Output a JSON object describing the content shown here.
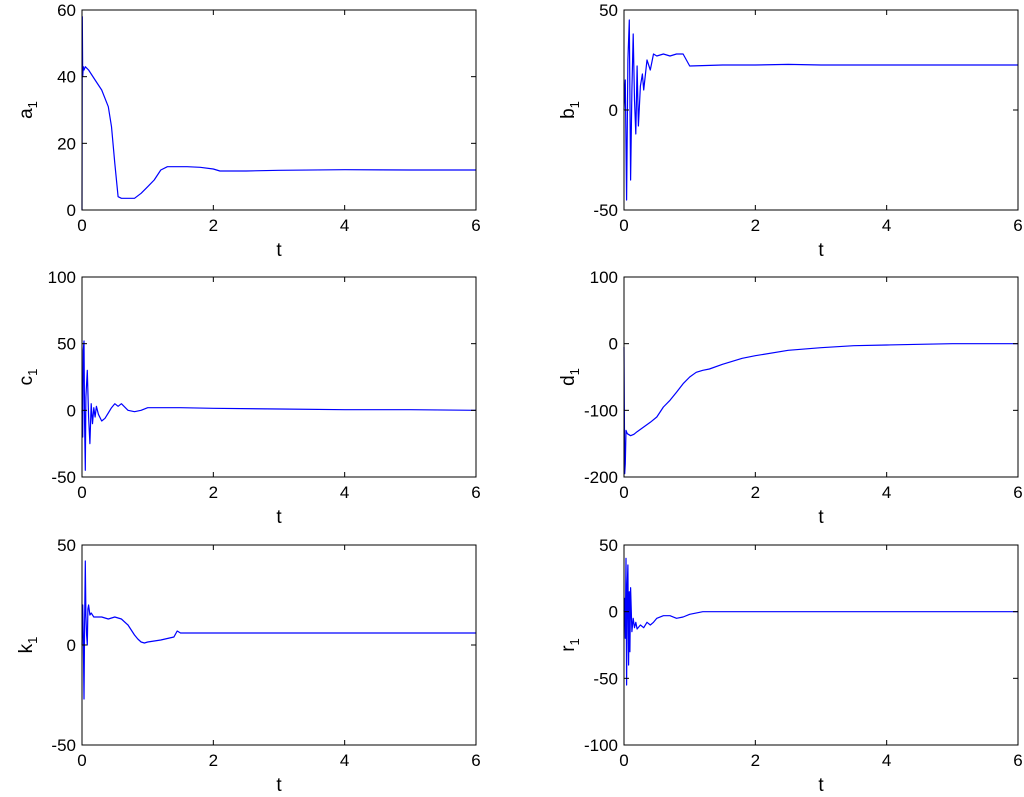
{
  "chart_data": [
    {
      "type": "line",
      "xlabel": "t",
      "ylabel": "a",
      "ylabel_sub": "1",
      "xlim": [
        0,
        6
      ],
      "ylim": [
        0,
        60
      ],
      "xticks": [
        0,
        2,
        4,
        6
      ],
      "yticks": [
        0,
        20,
        40,
        60
      ],
      "grid": false,
      "color": "#0000ff",
      "series": [
        {
          "x": [
            0,
            0.005,
            0.01,
            0.02,
            0.03,
            0.05,
            0.1,
            0.2,
            0.3,
            0.4,
            0.45,
            0.5,
            0.55,
            0.6,
            0.7,
            0.8,
            0.9,
            1.0,
            1.1,
            1.2,
            1.3,
            1.4,
            1.6,
            1.8,
            2.0,
            2.1,
            2.5,
            3.0,
            4.0,
            5.0,
            6.0
          ],
          "y": [
            0,
            58,
            40,
            43,
            42,
            43,
            42,
            39,
            36,
            31,
            25,
            14,
            4,
            3.5,
            3.5,
            3.5,
            5,
            7,
            9,
            12,
            13,
            13,
            13,
            12.8,
            12.3,
            11.7,
            11.7,
            11.9,
            12.1,
            12.0,
            12.0
          ]
        }
      ]
    },
    {
      "type": "line",
      "xlabel": "t",
      "ylabel": "b",
      "ylabel_sub": "1",
      "xlim": [
        0,
        6
      ],
      "ylim": [
        -50,
        50
      ],
      "xticks": [
        0,
        2,
        4,
        6
      ],
      "yticks": [
        -50,
        0,
        50
      ],
      "grid": false,
      "color": "#0000ff",
      "series": [
        {
          "x": [
            0,
            0.02,
            0.04,
            0.06,
            0.08,
            0.1,
            0.12,
            0.14,
            0.16,
            0.18,
            0.2,
            0.22,
            0.25,
            0.28,
            0.3,
            0.35,
            0.4,
            0.45,
            0.5,
            0.6,
            0.7,
            0.8,
            0.9,
            0.95,
            1.0,
            1.5,
            2.0,
            2.5,
            3.0,
            4.0,
            5.0,
            6.0
          ],
          "y": [
            0,
            15,
            -45,
            25,
            45,
            -35,
            10,
            38,
            5,
            -12,
            22,
            -8,
            12,
            18,
            10,
            25,
            20,
            28,
            27,
            28,
            27,
            28,
            28,
            25,
            22,
            22.5,
            22.5,
            22.8,
            22.5,
            22.5,
            22.5,
            22.5
          ]
        }
      ]
    },
    {
      "type": "line",
      "xlabel": "t",
      "ylabel": "c",
      "ylabel_sub": "1",
      "xlim": [
        0,
        6
      ],
      "ylim": [
        -50,
        100
      ],
      "xticks": [
        0,
        2,
        4,
        6
      ],
      "yticks": [
        -50,
        0,
        50,
        100
      ],
      "grid": false,
      "color": "#0000ff",
      "series": [
        {
          "x": [
            0,
            0.01,
            0.02,
            0.03,
            0.04,
            0.05,
            0.06,
            0.08,
            0.1,
            0.12,
            0.14,
            0.16,
            0.18,
            0.2,
            0.22,
            0.25,
            0.3,
            0.35,
            0.4,
            0.45,
            0.5,
            0.55,
            0.6,
            0.7,
            0.8,
            0.9,
            1.0,
            1.5,
            2.0,
            3.0,
            4.0,
            5.0,
            6.0
          ],
          "y": [
            0,
            -20,
            45,
            52,
            -10,
            -45,
            10,
            30,
            -5,
            -25,
            5,
            -10,
            2,
            -5,
            3,
            -3,
            -8,
            -6,
            -2,
            2,
            5,
            3,
            5,
            0,
            -1,
            0,
            2,
            2,
            1.5,
            1,
            0.5,
            0.5,
            0
          ]
        }
      ]
    },
    {
      "type": "line",
      "xlabel": "t",
      "ylabel": "d",
      "ylabel_sub": "1",
      "xlim": [
        0,
        6
      ],
      "ylim": [
        -200,
        100
      ],
      "xticks": [
        0,
        2,
        4,
        6
      ],
      "yticks": [
        -200,
        -100,
        0,
        100
      ],
      "grid": false,
      "color": "#0000ff",
      "series": [
        {
          "x": [
            0,
            0.01,
            0.02,
            0.03,
            0.05,
            0.1,
            0.15,
            0.2,
            0.3,
            0.4,
            0.5,
            0.6,
            0.7,
            0.8,
            0.9,
            1.0,
            1.1,
            1.2,
            1.3,
            1.5,
            1.8,
            2.0,
            2.5,
            3.0,
            3.5,
            4.0,
            4.5,
            5.0,
            5.5,
            6.0
          ],
          "y": [
            -5,
            -195,
            -180,
            -130,
            -135,
            -138,
            -136,
            -132,
            -125,
            -118,
            -110,
            -95,
            -85,
            -73,
            -60,
            -50,
            -43,
            -40,
            -38,
            -31,
            -22,
            -18,
            -10,
            -6,
            -3,
            -2,
            -1,
            0,
            0,
            0
          ]
        }
      ]
    },
    {
      "type": "line",
      "xlabel": "t",
      "ylabel": "k",
      "ylabel_sub": "1",
      "xlim": [
        0,
        6
      ],
      "ylim": [
        -50,
        50
      ],
      "xticks": [
        0,
        2,
        4,
        6
      ],
      "yticks": [
        -50,
        0,
        50
      ],
      "grid": false,
      "color": "#0000ff",
      "series": [
        {
          "x": [
            0,
            0.01,
            0.02,
            0.03,
            0.04,
            0.05,
            0.06,
            0.07,
            0.08,
            0.09,
            0.1,
            0.12,
            0.14,
            0.16,
            0.18,
            0.2,
            0.3,
            0.4,
            0.5,
            0.6,
            0.7,
            0.8,
            0.85,
            0.9,
            0.95,
            1.0,
            1.2,
            1.4,
            1.45,
            1.5,
            1.6,
            1.8,
            2.0,
            3.0,
            4.0,
            5.0,
            6.0
          ],
          "y": [
            0,
            20,
            5,
            -27,
            10,
            42,
            15,
            5,
            0,
            18,
            20,
            15,
            16,
            15,
            14,
            14,
            14,
            13,
            14,
            13,
            10,
            5,
            3,
            1.5,
            1,
            1.5,
            2.5,
            4,
            7,
            6,
            6,
            6,
            6,
            6,
            6,
            6,
            6
          ]
        }
      ]
    },
    {
      "type": "line",
      "xlabel": "t",
      "ylabel": "r",
      "ylabel_sub": "1",
      "xlim": [
        0,
        6
      ],
      "ylim": [
        -100,
        50
      ],
      "xticks": [
        0,
        2,
        4,
        6
      ],
      "yticks": [
        -100,
        -50,
        0,
        50
      ],
      "grid": false,
      "color": "#0000ff",
      "series": [
        {
          "x": [
            0,
            0.01,
            0.02,
            0.03,
            0.04,
            0.05,
            0.06,
            0.07,
            0.08,
            0.09,
            0.1,
            0.12,
            0.14,
            0.16,
            0.18,
            0.2,
            0.25,
            0.3,
            0.35,
            0.4,
            0.45,
            0.5,
            0.6,
            0.7,
            0.8,
            0.9,
            1.0,
            1.2,
            1.5,
            2.0,
            3.0,
            4.0,
            5.0,
            6.0
          ],
          "y": [
            0,
            10,
            -20,
            40,
            -55,
            20,
            35,
            -40,
            15,
            -30,
            18,
            -15,
            -5,
            -12,
            -8,
            -13,
            -10,
            -12,
            -8,
            -10,
            -8,
            -5,
            -3,
            -3,
            -5,
            -4,
            -2,
            0,
            0,
            0,
            0,
            0,
            0,
            0
          ]
        }
      ]
    }
  ]
}
